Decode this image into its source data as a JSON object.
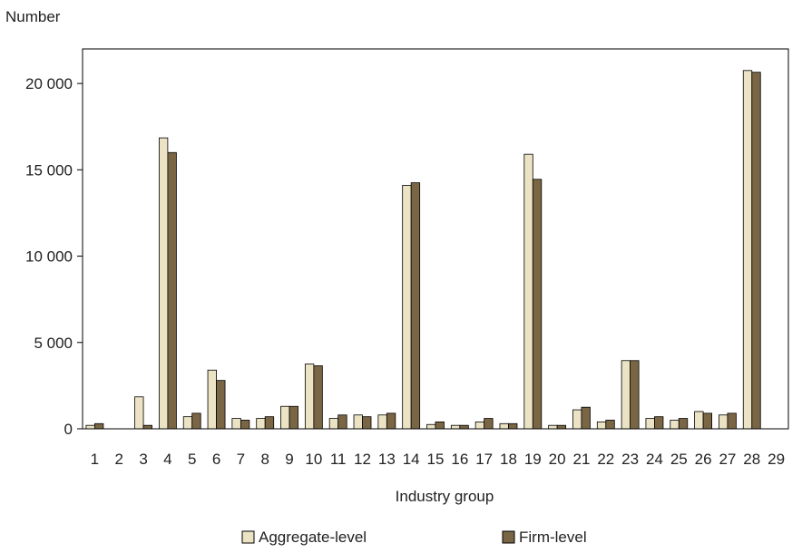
{
  "chart_data": {
    "type": "bar",
    "title": "",
    "ylabel": "Number",
    "xlabel": "Industry group",
    "ylim": [
      0,
      22000
    ],
    "yticks": [
      0,
      5000,
      10000,
      15000,
      20000
    ],
    "ytick_labels": [
      "0",
      "5 000",
      "10 000",
      "15 000",
      "20 000"
    ],
    "grid": false,
    "legend_position": "bottom",
    "categories": [
      "1",
      "2",
      "3",
      "4",
      "5",
      "6",
      "7",
      "8",
      "9",
      "10",
      "11",
      "12",
      "13",
      "14",
      "15",
      "16",
      "17",
      "18",
      "19",
      "20",
      "21",
      "22",
      "23",
      "24",
      "25",
      "26",
      "27",
      "28",
      "29"
    ],
    "series": [
      {
        "name": "Aggregate-level",
        "color": "#ebe3c4",
        "values": [
          200,
          0,
          1850,
          16850,
          700,
          3400,
          600,
          600,
          1300,
          3750,
          600,
          800,
          800,
          14100,
          250,
          200,
          400,
          300,
          15900,
          200,
          1100,
          400,
          3950,
          600,
          500,
          1000,
          800,
          20750,
          0
        ]
      },
      {
        "name": "Firm-level",
        "color": "#7a6644",
        "values": [
          300,
          0,
          200,
          16000,
          900,
          2800,
          500,
          700,
          1300,
          3650,
          800,
          700,
          900,
          14250,
          400,
          200,
          600,
          300,
          14450,
          200,
          1250,
          500,
          3950,
          700,
          600,
          900,
          900,
          20650,
          0
        ]
      }
    ]
  }
}
